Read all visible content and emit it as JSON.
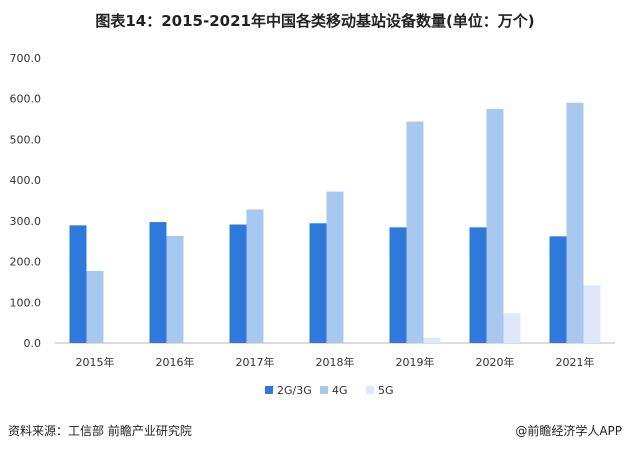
{
  "chart_data": {
    "type": "bar",
    "title": "图表14：2015-2021年中国各类移动基站设备数量(单位：万个)",
    "categories": [
      "2015年",
      "2016年",
      "2017年",
      "2018年",
      "2019年",
      "2020年",
      "2021年"
    ],
    "series": [
      {
        "name": "2G/3G",
        "values": [
          289,
          297,
          291,
          294,
          284,
          284,
          262
        ],
        "color": "#2f78dc"
      },
      {
        "name": "4G",
        "values": [
          177,
          263,
          328,
          372,
          544,
          575,
          590
        ],
        "color": "#a9c8f0"
      },
      {
        "name": "5G",
        "values": [
          0,
          0,
          0,
          0,
          13,
          73,
          142
        ],
        "color": "#dde9fa"
      }
    ],
    "ylim": [
      0,
      700
    ],
    "yticks": [
      "0.0",
      "100.0",
      "200.0",
      "300.0",
      "400.0",
      "500.0",
      "600.0",
      "700.0"
    ],
    "legend": "bottom",
    "grid": false
  },
  "footer": {
    "source": "资料来源：工信部 前瞻产业研究院",
    "brand": "@前瞻经济学人APP"
  }
}
